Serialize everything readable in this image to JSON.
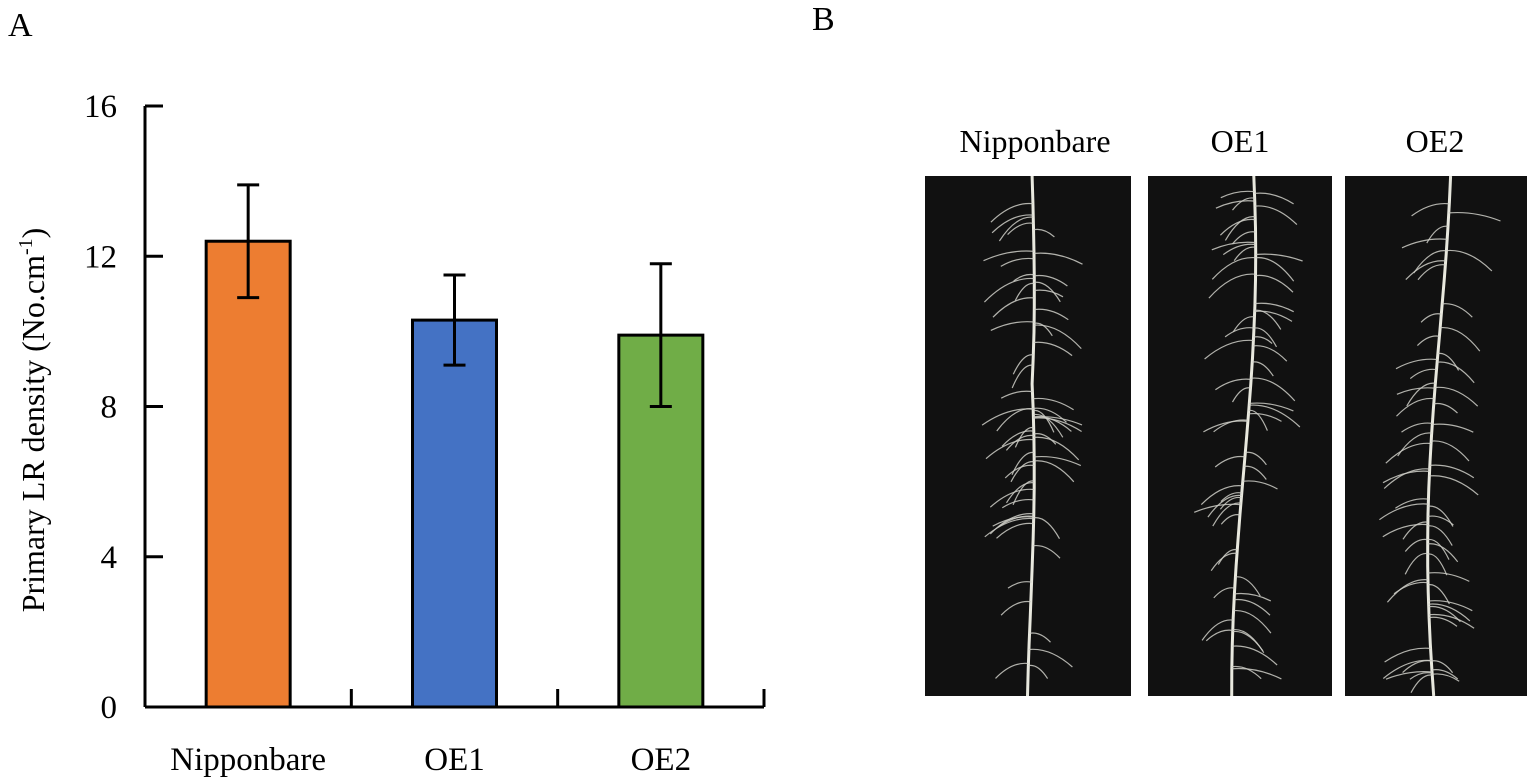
{
  "panels": {
    "a_label": "A",
    "b_label": "B"
  },
  "chart_data": {
    "type": "bar",
    "categories": [
      "Nipponbare",
      "OE1",
      "OE2"
    ],
    "values": [
      12.4,
      10.3,
      9.9
    ],
    "errors": [
      1.5,
      1.2,
      1.9
    ],
    "colors": [
      "#ED7D31",
      "#4472C4",
      "#70AD47"
    ],
    "ylabel": "Primary LR density (No.cm",
    "ylabel_sup": "-1",
    "ylabel_close": ")",
    "ylim": [
      0,
      16
    ],
    "yticks": [
      0,
      4,
      8,
      12,
      16
    ],
    "legend": "none",
    "grid": false
  },
  "photos": {
    "labels": [
      "Nipponbare",
      "OE1",
      "OE2"
    ],
    "background": "#111111",
    "root_color": "#e8e8de"
  }
}
